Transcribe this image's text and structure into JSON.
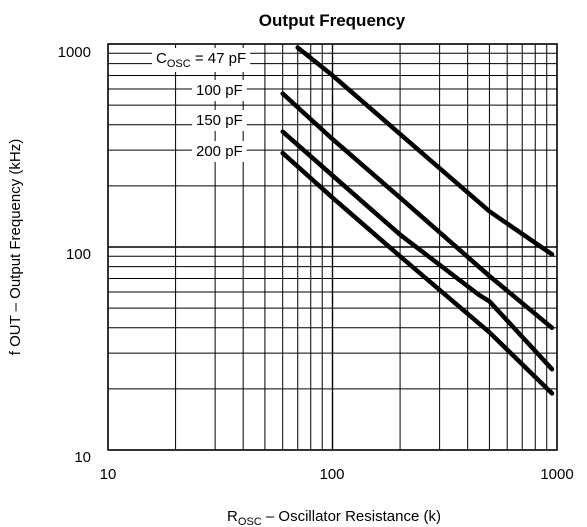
{
  "chart_data": {
    "type": "line",
    "title": "Output Frequency",
    "xlabel": {
      "main": "R",
      "sub": "OSC",
      "rest": " – Oscillator Resistance (k)"
    },
    "ylabel": "f OUT – Output Frequency (kHz)",
    "x_scale": "log",
    "y_scale": "log",
    "xlim": [
      10,
      1000
    ],
    "ylim": [
      10,
      1000
    ],
    "x_ticks": [
      "10",
      "100",
      "1000"
    ],
    "y_ticks": [
      "1000",
      "100",
      "10"
    ],
    "grid": true,
    "series": [
      {
        "name": "C_OSC = 47 pF",
        "x": [
          70,
          100,
          200,
          500,
          950
        ],
        "y": [
          960,
          700,
          360,
          150,
          92
        ]
      },
      {
        "name": "100 pF",
        "x": [
          60,
          100,
          200,
          500,
          950
        ],
        "y": [
          570,
          340,
          175,
          72,
          40
        ]
      },
      {
        "name": "150 pF",
        "x": [
          60,
          100,
          200,
          450,
          500,
          950
        ],
        "y": [
          370,
          225,
          115,
          58,
          54,
          25
        ]
      },
      {
        "name": "200 pF",
        "x": [
          60,
          100,
          200,
          500,
          950
        ],
        "y": [
          290,
          175,
          90,
          38,
          19
        ]
      }
    ],
    "legend": {
      "first": {
        "prefix": "C",
        "sub": "OSC",
        "rest": " = 47 pF"
      },
      "others": [
        "100 pF",
        "150 pF",
        "200 pF"
      ]
    }
  }
}
